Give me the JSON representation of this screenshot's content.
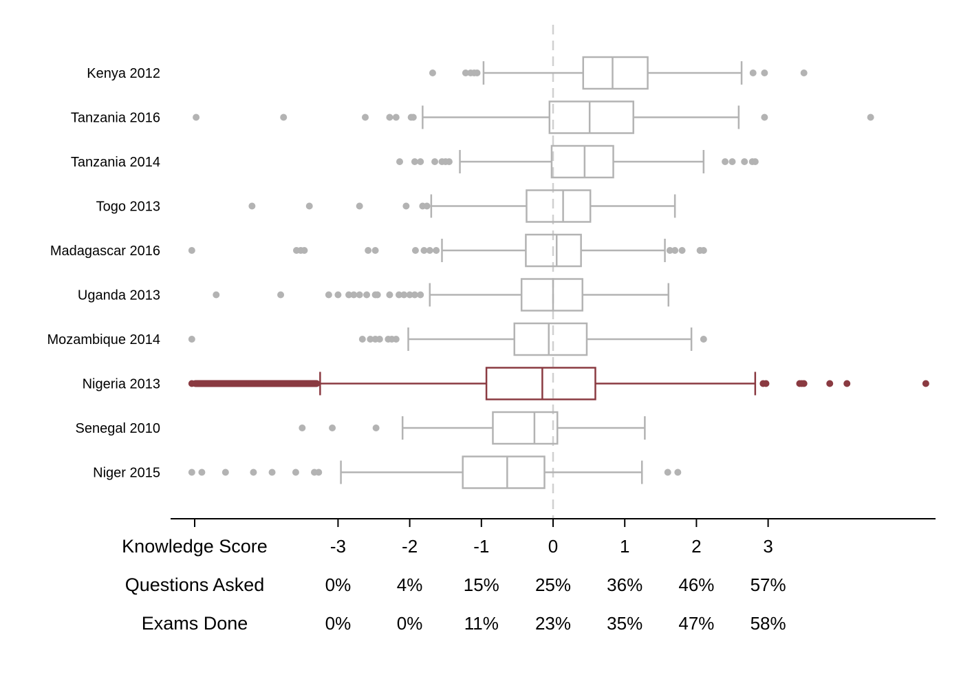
{
  "chart_data": {
    "type": "boxplot",
    "title": "",
    "xlabel": "",
    "ylabel": "",
    "xlim": [
      -5,
      5.4
    ],
    "colors": {
      "default": "#b3b3b3",
      "highlight": "#8a3a41",
      "zero_line": "#d0d0d0",
      "axis": "#000000"
    },
    "highlight_category": "Nigeria 2013",
    "categories": [
      {
        "label": "Kenya 2012",
        "whisker_low": -0.97,
        "q1": 0.42,
        "median": 0.83,
        "q3": 1.32,
        "whisker_high": 2.63,
        "outliers": [
          -1.68,
          -1.22,
          -1.15,
          -1.1,
          -1.06,
          2.79,
          2.95,
          3.5
        ]
      },
      {
        "label": "Tanzania 2016",
        "whisker_low": -1.82,
        "q1": -0.05,
        "median": 0.51,
        "q3": 1.12,
        "whisker_high": 2.59,
        "outliers": [
          -4.98,
          -3.76,
          -2.62,
          -2.28,
          -2.19,
          -1.98,
          -1.95,
          2.95,
          4.43
        ]
      },
      {
        "label": "Tanzania 2014",
        "whisker_low": -1.3,
        "q1": -0.02,
        "median": 0.44,
        "q3": 0.84,
        "whisker_high": 2.1,
        "outliers": [
          -2.14,
          -1.93,
          -1.85,
          -1.65,
          -1.55,
          -1.5,
          -1.45,
          2.4,
          2.5,
          2.67,
          2.78,
          2.82
        ]
      },
      {
        "label": "Togo 2013",
        "whisker_low": -1.7,
        "q1": -0.37,
        "median": 0.14,
        "q3": 0.52,
        "whisker_high": 1.7,
        "outliers": [
          -4.2,
          -3.4,
          -2.7,
          -2.05,
          -1.82,
          -1.76
        ]
      },
      {
        "label": "Madagascar 2016",
        "whisker_low": -1.55,
        "q1": -0.38,
        "median": 0.05,
        "q3": 0.39,
        "whisker_high": 1.56,
        "outliers": [
          -5.04,
          -3.58,
          -3.52,
          -3.47,
          -2.58,
          -2.48,
          -1.92,
          -1.8,
          -1.72,
          -1.63,
          1.63,
          1.7,
          1.8,
          2.05,
          2.1
        ]
      },
      {
        "label": "Uganda 2013",
        "whisker_low": -1.72,
        "q1": -0.44,
        "median": 0.0,
        "q3": 0.41,
        "whisker_high": 1.61,
        "outliers": [
          -4.7,
          -3.8,
          -3.13,
          -3.0,
          -2.85,
          -2.78,
          -2.7,
          -2.6,
          -2.48,
          -2.45,
          -2.28,
          -2.15,
          -2.08,
          -2.0,
          -1.93,
          -1.85
        ]
      },
      {
        "label": "Mozambique 2014",
        "whisker_low": -2.02,
        "q1": -0.54,
        "median": -0.06,
        "q3": 0.47,
        "whisker_high": 1.93,
        "outliers": [
          -5.04,
          -2.66,
          -2.55,
          -2.48,
          -2.42,
          -2.3,
          -2.25,
          -2.19,
          2.1
        ]
      },
      {
        "label": "Nigeria 2013",
        "whisker_low": -3.25,
        "q1": -0.93,
        "median": -0.15,
        "q3": 0.59,
        "whisker_high": 2.82,
        "outliers_range": [
          -5.04,
          -3.25
        ],
        "outliers": [
          2.93,
          2.97,
          3.44,
          3.47,
          3.5,
          3.86,
          4.1,
          5.2
        ]
      },
      {
        "label": "Senegal 2010",
        "whisker_low": -2.1,
        "q1": -0.84,
        "median": -0.26,
        "q3": 0.06,
        "whisker_high": 1.28,
        "outliers": [
          -3.5,
          -3.08,
          -2.47
        ]
      },
      {
        "label": "Niger 2015",
        "whisker_low": -2.96,
        "q1": -1.26,
        "median": -0.64,
        "q3": -0.12,
        "whisker_high": 1.24,
        "outliers": [
          -5.04,
          -4.9,
          -4.57,
          -4.18,
          -3.92,
          -3.59,
          -3.33,
          -3.27,
          1.6,
          1.74
        ]
      }
    ],
    "table": {
      "ticks": [
        -3,
        -2,
        -1,
        0,
        1,
        2,
        3
      ],
      "rows": [
        {
          "label": "Knowledge Score",
          "values": [
            "-3",
            "-2",
            "-1",
            "0",
            "1",
            "2",
            "3"
          ]
        },
        {
          "label": "Questions Asked",
          "values": [
            "0%",
            "4%",
            "15%",
            "25%",
            "36%",
            "46%",
            "57%"
          ]
        },
        {
          "label": "Exams Done",
          "values": [
            "0%",
            "0%",
            "11%",
            "23%",
            "35%",
            "47%",
            "58%"
          ]
        }
      ]
    }
  }
}
